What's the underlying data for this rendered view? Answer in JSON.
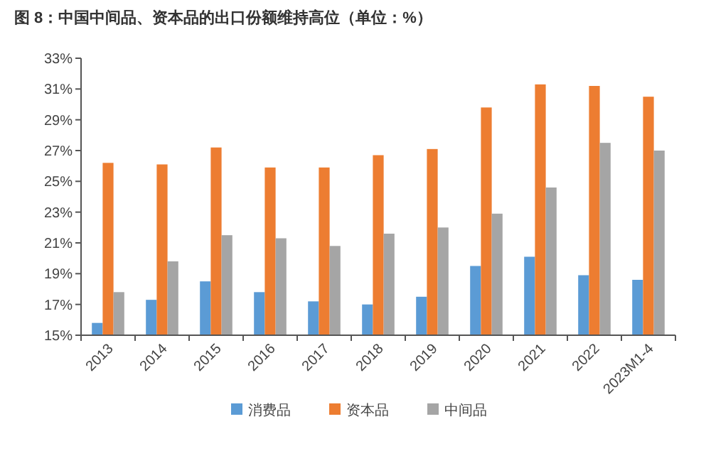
{
  "chart_data": {
    "type": "bar",
    "title": "图 8：中国中间品、资本品的出口份额维持高位（单位：%）",
    "categories": [
      "2013",
      "2014",
      "2015",
      "2016",
      "2017",
      "2018",
      "2019",
      "2020",
      "2021",
      "2022",
      "2023M1-4"
    ],
    "series": [
      {
        "name": "消费品",
        "color": "#5b9bd5",
        "values": [
          15.8,
          17.3,
          18.5,
          17.8,
          17.2,
          17.0,
          17.5,
          19.5,
          20.1,
          18.9,
          18.6
        ]
      },
      {
        "name": "资本品",
        "color": "#ed7d31",
        "values": [
          26.2,
          26.1,
          27.2,
          25.9,
          25.9,
          26.7,
          27.1,
          29.8,
          31.3,
          31.2,
          30.5
        ]
      },
      {
        "name": "中间品",
        "color": "#a5a5a5",
        "values": [
          17.8,
          19.8,
          21.5,
          21.3,
          20.8,
          21.6,
          22.0,
          22.9,
          24.6,
          27.5,
          27.0
        ]
      }
    ],
    "ylim": [
      15,
      33
    ],
    "yticks": [
      {
        "value": 15,
        "label": "15%"
      },
      {
        "value": 17,
        "label": "17%"
      },
      {
        "value": 19,
        "label": "19%"
      },
      {
        "value": 21,
        "label": "21%"
      },
      {
        "value": 23,
        "label": "23%"
      },
      {
        "value": 25,
        "label": "25%"
      },
      {
        "value": 27,
        "label": "27%"
      },
      {
        "value": 29,
        "label": "29%"
      },
      {
        "value": 31,
        "label": "31%"
      },
      {
        "value": 33,
        "label": "33%"
      }
    ],
    "grid": false,
    "legend": "bottom"
  }
}
